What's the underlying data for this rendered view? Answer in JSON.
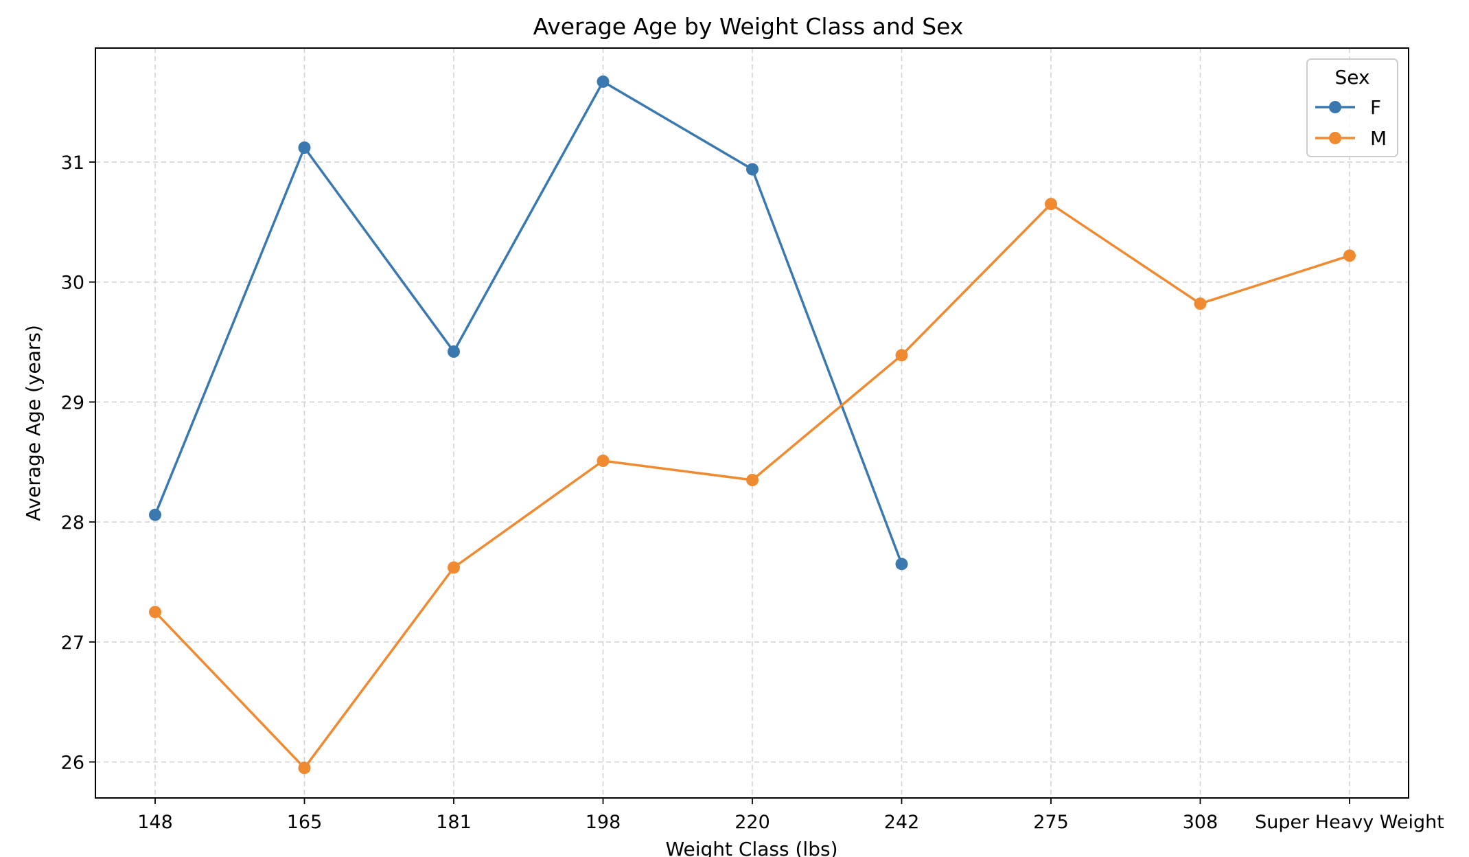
{
  "chart_data": {
    "type": "line",
    "title": "Average Age by Weight Class and Sex",
    "xlabel": "Weight Class (lbs)",
    "ylabel": "Average Age (years)",
    "categories": [
      "148",
      "165",
      "181",
      "198",
      "220",
      "242",
      "275",
      "308",
      "Super Heavy Weight"
    ],
    "ylim": [
      25.7,
      31.95
    ],
    "yticks": [
      26,
      27,
      28,
      29,
      30,
      31
    ],
    "ytick_labels": [
      "26",
      "27",
      "28",
      "29",
      "30",
      "31"
    ],
    "grid": true,
    "legend": {
      "title": "Sex",
      "placement": "top-right",
      "entries": [
        "F",
        "M"
      ]
    },
    "series": [
      {
        "name": "F",
        "color": "#3a78b0",
        "values": [
          28.06,
          31.12,
          29.42,
          31.67,
          30.94,
          27.65,
          null,
          null,
          null
        ]
      },
      {
        "name": "M",
        "color": "#f08a30",
        "values": [
          27.25,
          25.95,
          27.62,
          28.51,
          28.35,
          29.39,
          30.65,
          29.82,
          30.22
        ]
      }
    ]
  }
}
